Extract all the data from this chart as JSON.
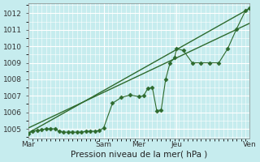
{
  "xlabel": "Pression niveau de la mer( hPa )",
  "bg_color": "#c6ecee",
  "grid_color": "#ffffff",
  "line_color": "#2d6a2d",
  "ylim": [
    1004.4,
    1012.6
  ],
  "xlim": [
    0,
    100
  ],
  "day_labels": [
    "Mar",
    "Sam",
    "Mer",
    "Jeu",
    "Ven"
  ],
  "day_positions": [
    0,
    34,
    50,
    67,
    100
  ],
  "yticks": [
    1005,
    1006,
    1007,
    1008,
    1009,
    1010,
    1011,
    1012
  ],
  "detailed_x": [
    0,
    2,
    4,
    6,
    8,
    10,
    12,
    14,
    16,
    18,
    20,
    22,
    24,
    26,
    28,
    30,
    32,
    34,
    38,
    42,
    46,
    50,
    52,
    54,
    56,
    58,
    60,
    62,
    64,
    66,
    67,
    70,
    74,
    78,
    82,
    86,
    90,
    94,
    98,
    100
  ],
  "detailed_y": [
    1004.7,
    1004.85,
    1004.9,
    1004.95,
    1005.0,
    1005.0,
    1005.0,
    1004.85,
    1004.8,
    1004.8,
    1004.8,
    1004.8,
    1004.8,
    1004.85,
    1004.85,
    1004.85,
    1004.9,
    1005.05,
    1006.55,
    1006.9,
    1007.05,
    1006.95,
    1007.0,
    1007.45,
    1007.5,
    1006.1,
    1006.15,
    1008.0,
    1009.0,
    1009.3,
    1009.85,
    1009.75,
    1009.0,
    1009.0,
    1009.0,
    1009.0,
    1009.85,
    1011.05,
    1012.15,
    1012.3
  ],
  "trend1_x": [
    0,
    100
  ],
  "trend1_y": [
    1004.75,
    1012.3
  ],
  "trend2_x": [
    0,
    100
  ],
  "trend2_y": [
    1005.05,
    1011.4
  ],
  "marker_size": 2.5,
  "vline_color": "#8aaa8a",
  "tick_fontsize": 6.5,
  "xlabel_fontsize": 7.5
}
